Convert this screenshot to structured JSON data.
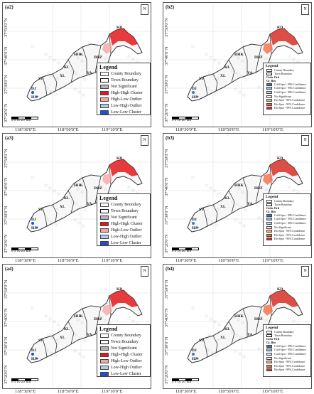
{
  "panels": [
    {
      "id": "a2",
      "label": "(a2)",
      "legend": "A"
    },
    {
      "id": "b2",
      "label": "(b2)",
      "legend": "B"
    },
    {
      "id": "a3",
      "label": "(a3)",
      "legend": "A"
    },
    {
      "id": "b3",
      "label": "(b3)",
      "legend": "B"
    },
    {
      "id": "a4",
      "label": "(a4)",
      "legend": "A"
    },
    {
      "id": "b4",
      "label": "(b4)",
      "legend": "B"
    }
  ],
  "north_label": "N",
  "lat_labels": [
    "37°50'0\"N",
    "37°40'0\"N",
    "37°30'0\"N",
    "37°20'0\"N"
  ],
  "lon_labels": [
    "118°30'0\"E",
    "118°50'0\"E",
    "119°10'0\"E"
  ],
  "scale": {
    "ticks": "0  5  10        20",
    "unit": "km"
  },
  "towns": [
    "KD",
    "HHK",
    "DDZ",
    "KL",
    "XL",
    "YA",
    "ST",
    "DJ",
    "HJ"
  ],
  "legend_A": {
    "title": "Legend",
    "items": [
      {
        "label": "County Boundary",
        "color": "#ffffff",
        "style": "box"
      },
      {
        "label": "Town Boundary",
        "color": "#ffffff",
        "style": "thick"
      },
      {
        "label": "Not Significant",
        "color": "#b3b3b3"
      },
      {
        "label": "High-High Cluster",
        "color": "#e31a1c"
      },
      {
        "label": "High-Low Outlier",
        "color": "#f4a6a6"
      },
      {
        "label": "Low-High Outlier",
        "color": "#a6cff2"
      },
      {
        "label": "Low-Low Cluster",
        "color": "#1f4fd6"
      }
    ]
  },
  "legend_B": {
    "title": "Legend",
    "top_items": [
      {
        "label": "County Boundary",
        "style": "box"
      },
      {
        "label": "Town Boundary",
        "style": "thick"
      }
    ],
    "sub1": "Getis-Ord",
    "sub2": "Gi_Bin",
    "items": [
      {
        "label": "Cold Spot - 99% Confidence",
        "color": "#4575b4"
      },
      {
        "label": "Cold Spot - 95% Confidence",
        "color": "#91bfdb"
      },
      {
        "label": "Cold Spot - 90% Confidence",
        "color": "#c6dbef"
      },
      {
        "label": "Not Significant",
        "color": "#f0f0f0"
      },
      {
        "label": "Hot Spot - 90% Confidence",
        "color": "#fdae61"
      },
      {
        "label": "Hot Spot - 95% Confidence",
        "color": "#f46d43"
      },
      {
        "label": "Hot Spot - 99% Confidence",
        "color": "#d73027"
      }
    ]
  }
}
